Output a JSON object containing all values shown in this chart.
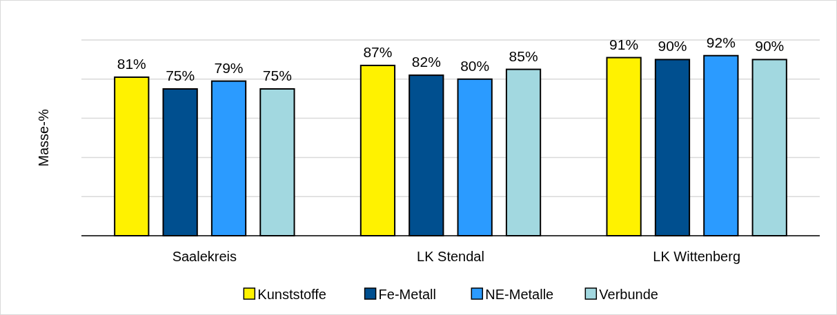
{
  "chart_data": {
    "type": "bar",
    "ylabel": "Masse-%",
    "categories": [
      "Saalekreis",
      "LK Stendal",
      "LK Wittenberg"
    ],
    "series": [
      {
        "name": "Kunststoffe",
        "color": "#fff200",
        "values": [
          81,
          87,
          91
        ],
        "value_labels": [
          "81%",
          "87%",
          "91%"
        ]
      },
      {
        "name": "Fe-Metall",
        "color": "#004f8f",
        "values": [
          75,
          82,
          90
        ],
        "value_labels": [
          "75%",
          "82%",
          "90%"
        ]
      },
      {
        "name": "NE-Metalle",
        "color": "#2b9bff",
        "values": [
          79,
          80,
          92
        ],
        "value_labels": [
          "79%",
          "80%",
          "92%"
        ]
      },
      {
        "name": "Verbunde",
        "color": "#a2d8e0",
        "values": [
          75,
          85,
          90
        ],
        "value_labels": [
          "75%",
          "85%",
          "90%"
        ]
      }
    ],
    "ylim": [
      0,
      100
    ],
    "yticks": [
      {
        "value": 0,
        "label": null
      },
      {
        "value": 20,
        "label": null
      },
      {
        "value": 40,
        "label": null
      },
      {
        "value": 60,
        "label": null
      },
      {
        "value": 80,
        "label": null
      },
      {
        "value": 100,
        "label": null
      }
    ],
    "tick_labels": "x",
    "grid": "y",
    "legend": "bottom"
  }
}
